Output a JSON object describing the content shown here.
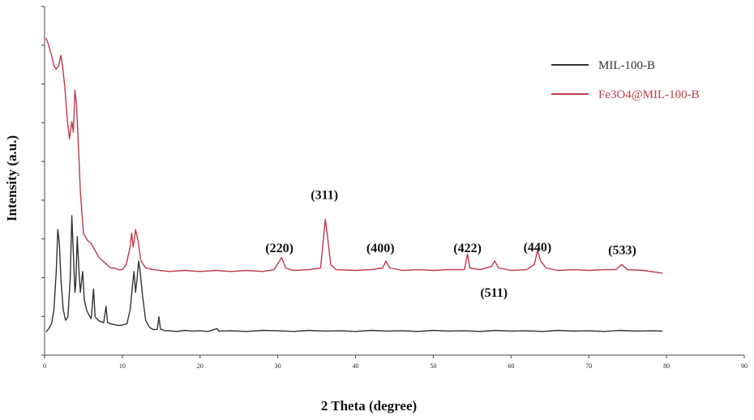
{
  "chart_data": {
    "type": "line",
    "title": "",
    "xlabel": "2 Theta (degree)",
    "ylabel": "Intensity (a.u.)",
    "xlim": [
      0,
      90
    ],
    "ylim": [
      0,
      100
    ],
    "x_ticks": [
      0,
      10,
      20,
      30,
      40,
      50,
      60,
      70,
      80,
      90
    ],
    "y_ticks_labeled": false,
    "grid": false,
    "legend_position": "top-right",
    "series": [
      {
        "name": "MIL-100-B",
        "color": "#333333",
        "points": [
          [
            0.2,
            6.7
          ],
          [
            0.5,
            7.5
          ],
          [
            0.9,
            9
          ],
          [
            1.2,
            13
          ],
          [
            1.5,
            24
          ],
          [
            1.7,
            36
          ],
          [
            1.9,
            32
          ],
          [
            2.1,
            22
          ],
          [
            2.4,
            13
          ],
          [
            2.7,
            10
          ],
          [
            3.0,
            11
          ],
          [
            3.3,
            22
          ],
          [
            3.5,
            40
          ],
          [
            3.7,
            29
          ],
          [
            3.9,
            18
          ],
          [
            4.0,
            20
          ],
          [
            4.2,
            34
          ],
          [
            4.4,
            25
          ],
          [
            4.6,
            18
          ],
          [
            4.9,
            24
          ],
          [
            5.1,
            16
          ],
          [
            5.4,
            13
          ],
          [
            5.7,
            11.5
          ],
          [
            6.0,
            10.5
          ],
          [
            6.3,
            19
          ],
          [
            6.5,
            11
          ],
          [
            6.9,
            10
          ],
          [
            7.2,
            9.6
          ],
          [
            7.6,
            9.3
          ],
          [
            7.9,
            14
          ],
          [
            8.1,
            9.4
          ],
          [
            8.5,
            9
          ],
          [
            9.0,
            8.7
          ],
          [
            9.5,
            8.5
          ],
          [
            10.0,
            8.6
          ],
          [
            10.6,
            9
          ],
          [
            11.0,
            13
          ],
          [
            11.3,
            20
          ],
          [
            11.5,
            24
          ],
          [
            11.7,
            18
          ],
          [
            11.9,
            22
          ],
          [
            12.1,
            27
          ],
          [
            12.3,
            24
          ],
          [
            12.6,
            17
          ],
          [
            13.0,
            10
          ],
          [
            13.5,
            8
          ],
          [
            14.0,
            7.3
          ],
          [
            14.5,
            7.4
          ],
          [
            14.7,
            11
          ],
          [
            14.9,
            7.5
          ],
          [
            15.5,
            7
          ],
          [
            16,
            7
          ],
          [
            17,
            6.8
          ],
          [
            18,
            7.1
          ],
          [
            19,
            6.9
          ],
          [
            20,
            7
          ],
          [
            21,
            6.8
          ],
          [
            22.2,
            7.6
          ],
          [
            22.4,
            6.9
          ],
          [
            24,
            7
          ],
          [
            26,
            6.8
          ],
          [
            28,
            7.1
          ],
          [
            30,
            7
          ],
          [
            32,
            6.8
          ],
          [
            34,
            7.1
          ],
          [
            36,
            6.9
          ],
          [
            38,
            7
          ],
          [
            40,
            6.8
          ],
          [
            42,
            7.1
          ],
          [
            44,
            6.9
          ],
          [
            46,
            7
          ],
          [
            48,
            6.8
          ],
          [
            50,
            7.1
          ],
          [
            52,
            6.9
          ],
          [
            54,
            7
          ],
          [
            56,
            6.8
          ],
          [
            58,
            7.1
          ],
          [
            60,
            6.9
          ],
          [
            62,
            7
          ],
          [
            64,
            6.8
          ],
          [
            66,
            7.1
          ],
          [
            68,
            6.9
          ],
          [
            70,
            7
          ],
          [
            72,
            6.8
          ],
          [
            74,
            7.1
          ],
          [
            76,
            6.9
          ],
          [
            78,
            7
          ],
          [
            79.5,
            6.9
          ]
        ]
      },
      {
        "name": "Fe3O4@MIL-100-B",
        "color": "#c0394b",
        "points": [
          [
            0.2,
            91
          ],
          [
            0.5,
            89
          ],
          [
            0.9,
            86
          ],
          [
            1.2,
            83
          ],
          [
            1.5,
            82
          ],
          [
            1.8,
            83
          ],
          [
            2.1,
            86
          ],
          [
            2.3,
            83
          ],
          [
            2.6,
            77
          ],
          [
            2.9,
            68
          ],
          [
            3.2,
            62
          ],
          [
            3.5,
            67
          ],
          [
            3.7,
            64
          ],
          [
            3.9,
            76
          ],
          [
            4.1,
            72
          ],
          [
            4.3,
            63
          ],
          [
            4.6,
            47
          ],
          [
            5.0,
            35
          ],
          [
            5.5,
            33
          ],
          [
            6.0,
            32
          ],
          [
            6.5,
            30
          ],
          [
            7.0,
            28
          ],
          [
            7.5,
            27
          ],
          [
            8.0,
            26
          ],
          [
            8.5,
            25
          ],
          [
            9.0,
            25
          ],
          [
            9.5,
            24.5
          ],
          [
            10.0,
            24.5
          ],
          [
            10.5,
            26
          ],
          [
            11.0,
            31
          ],
          [
            11.2,
            35
          ],
          [
            11.4,
            31
          ],
          [
            11.7,
            36
          ],
          [
            12.0,
            33
          ],
          [
            12.4,
            27
          ],
          [
            13,
            25
          ],
          [
            14,
            24.5
          ],
          [
            16,
            24
          ],
          [
            18,
            24.3
          ],
          [
            20,
            24
          ],
          [
            22,
            24.3
          ],
          [
            24,
            24
          ],
          [
            26,
            24.3
          ],
          [
            28,
            24
          ],
          [
            29.5,
            24.5
          ],
          [
            30.5,
            28
          ],
          [
            31.0,
            25
          ],
          [
            32,
            24.3
          ],
          [
            34,
            24.5
          ],
          [
            35.5,
            25
          ],
          [
            35.9,
            34
          ],
          [
            36.1,
            39
          ],
          [
            36.4,
            34
          ],
          [
            36.8,
            26
          ],
          [
            37.5,
            24.5
          ],
          [
            40,
            24.3
          ],
          [
            42,
            24.5
          ],
          [
            43.5,
            25
          ],
          [
            43.9,
            27
          ],
          [
            44.4,
            25
          ],
          [
            46,
            24.3
          ],
          [
            48,
            24.5
          ],
          [
            50,
            24.3
          ],
          [
            52,
            24.5
          ],
          [
            54,
            24.5
          ],
          [
            54.4,
            29
          ],
          [
            54.7,
            25
          ],
          [
            56,
            24.5
          ],
          [
            57.5,
            25.5
          ],
          [
            57.9,
            27
          ],
          [
            58.4,
            25
          ],
          [
            60,
            24.3
          ],
          [
            62,
            24.5
          ],
          [
            63.0,
            26
          ],
          [
            63.4,
            30
          ],
          [
            63.8,
            27
          ],
          [
            64.5,
            25
          ],
          [
            66,
            24.3
          ],
          [
            68,
            24.5
          ],
          [
            70,
            24.3
          ],
          [
            72,
            24.5
          ],
          [
            73.5,
            24.5
          ],
          [
            74.2,
            26
          ],
          [
            75,
            24.5
          ],
          [
            77,
            24.3
          ],
          [
            79.5,
            23.5
          ]
        ]
      }
    ],
    "annotations": [
      {
        "text": "(220)",
        "x": 30.2,
        "y": 29.5
      },
      {
        "text": "(311)",
        "x": 36.0,
        "y": 44.8
      },
      {
        "text": "(400)",
        "x": 43.2,
        "y": 29.5
      },
      {
        "text": "(422)",
        "x": 54.4,
        "y": 29.5
      },
      {
        "text": "(511)",
        "x": 57.8,
        "y": 16.8
      },
      {
        "text": "(440)",
        "x": 63.4,
        "y": 29.8
      },
      {
        "text": "(533)",
        "x": 74.3,
        "y": 29.0
      }
    ]
  }
}
